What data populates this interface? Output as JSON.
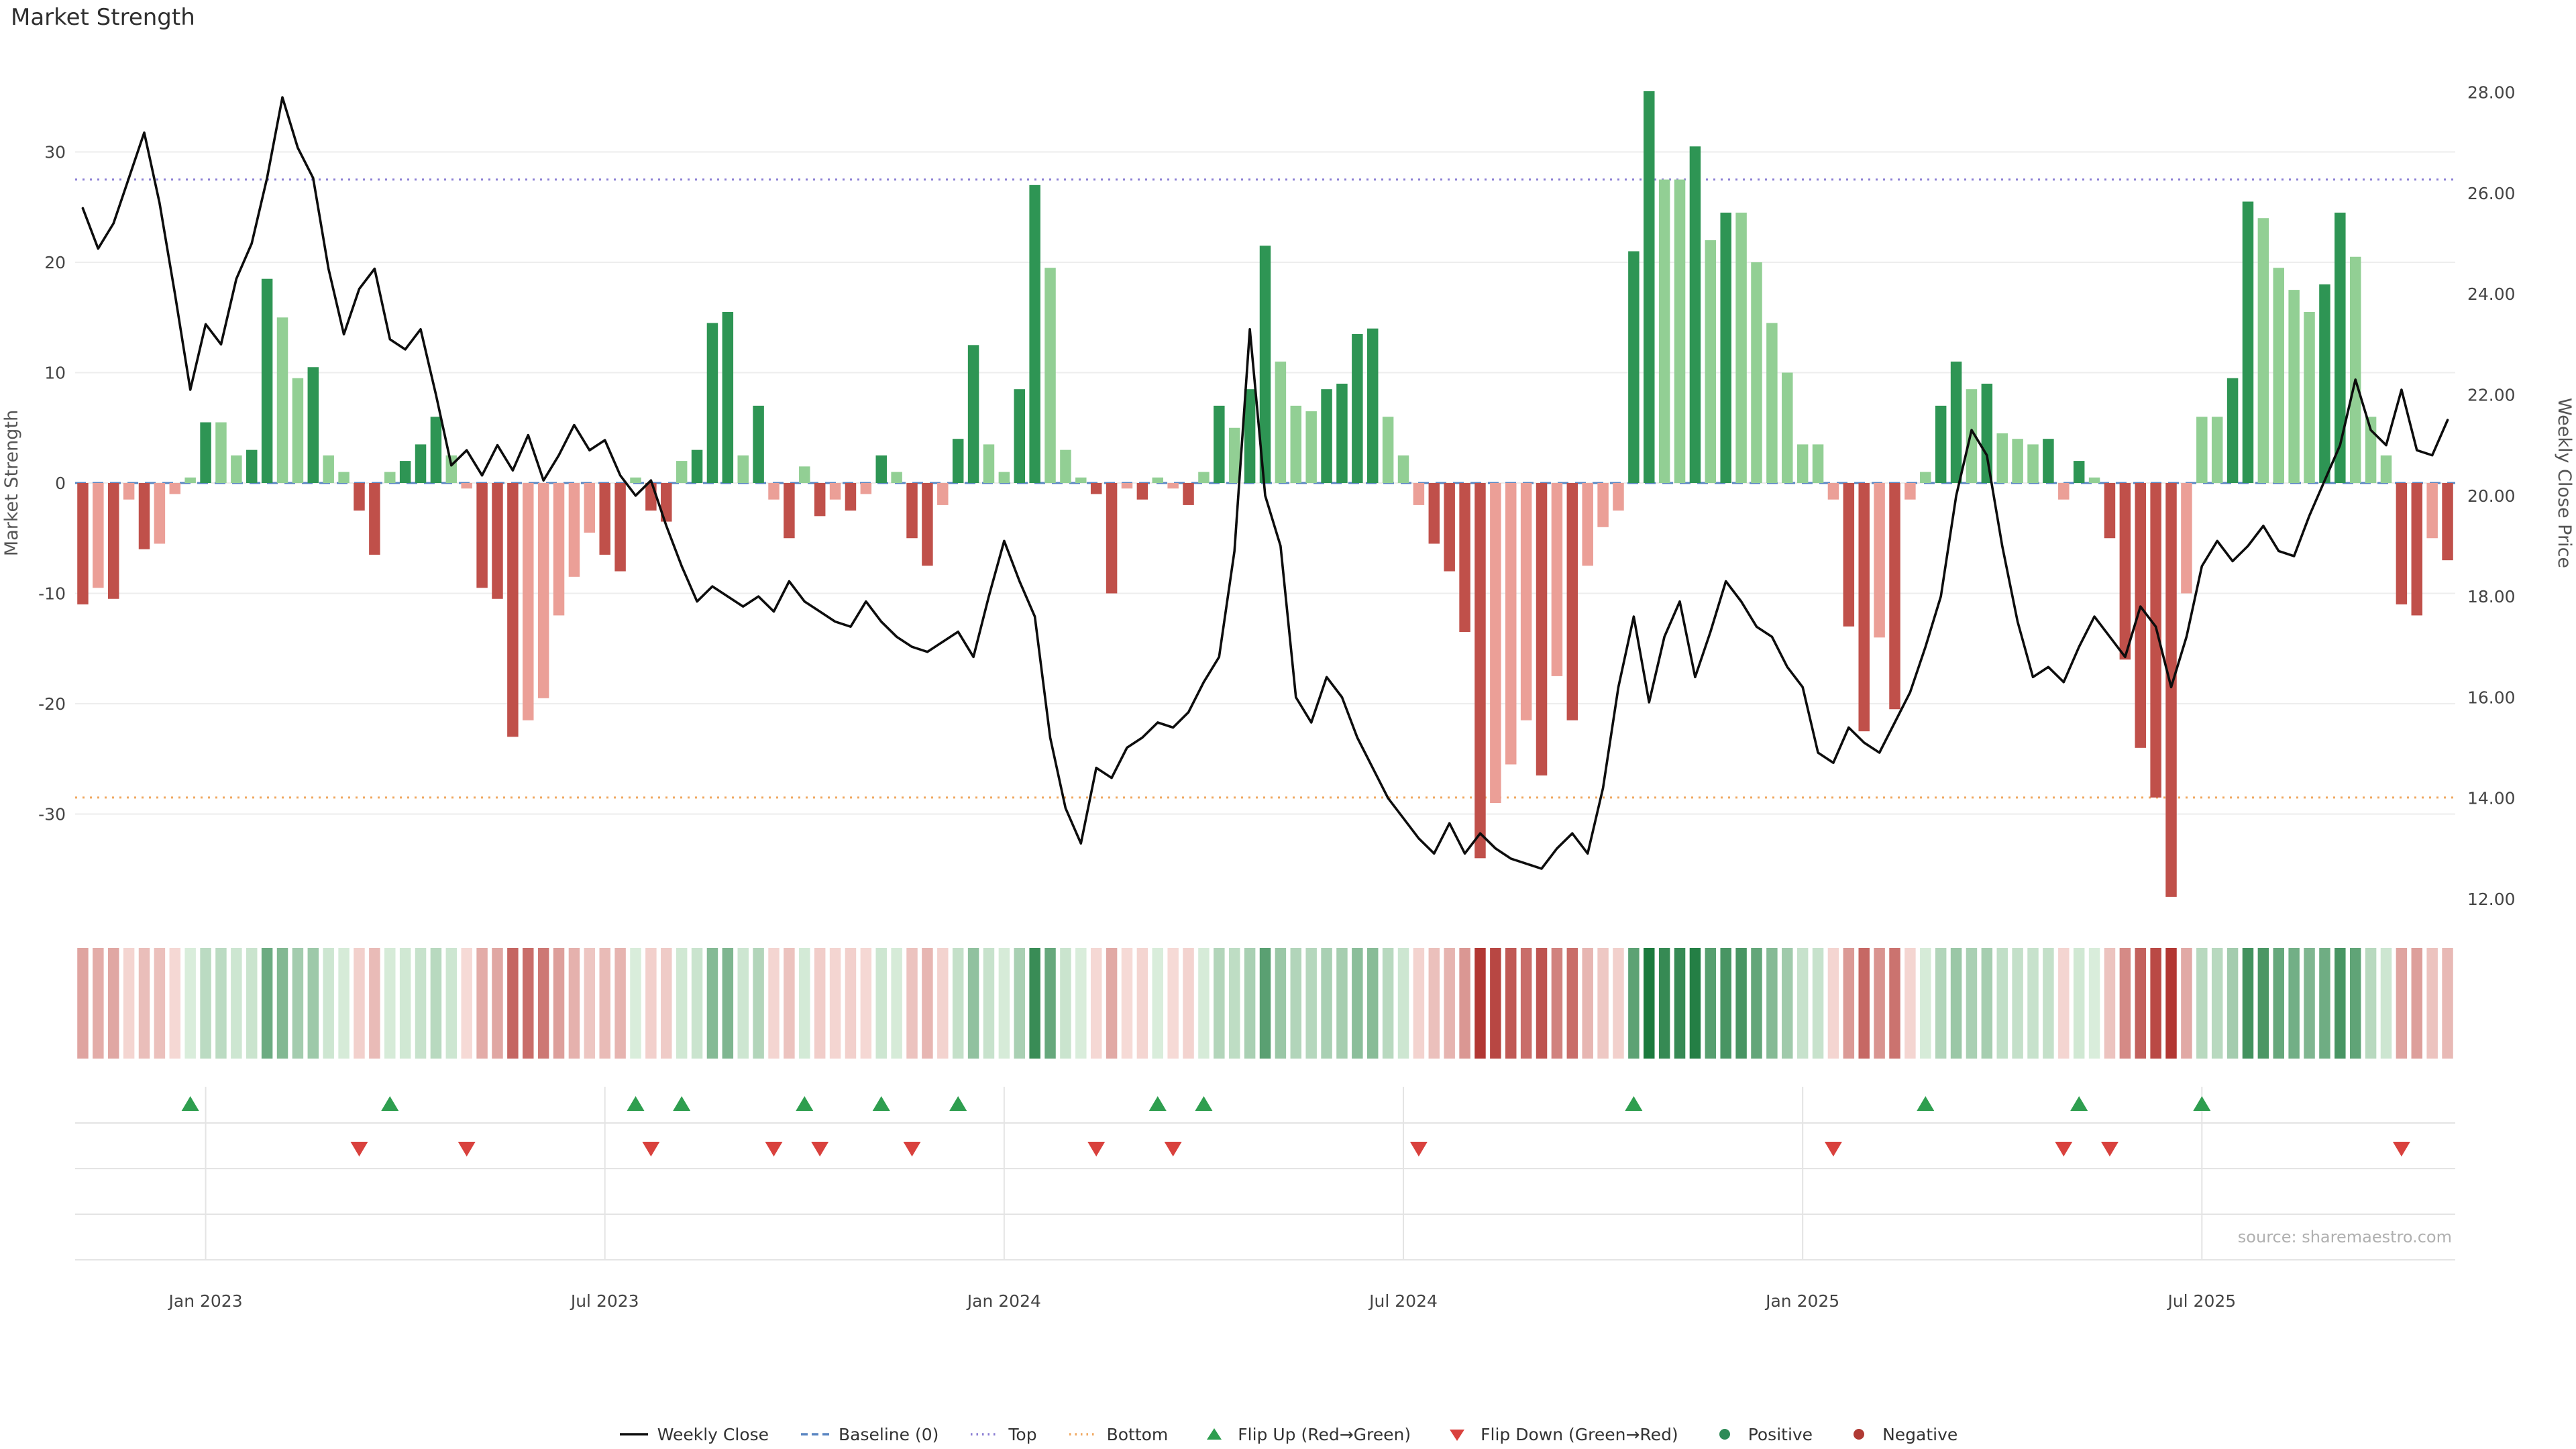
{
  "title": "Market Strength",
  "source": "source: sharemaestro.com",
  "left_axis": {
    "label": "Market Strength",
    "ticks": [
      -30,
      -20,
      -10,
      0,
      10,
      20,
      30
    ]
  },
  "right_axis": {
    "label": "Weekly Close Price",
    "ticks": [
      "12.00",
      "14.00",
      "16.00",
      "18.00",
      "20.00",
      "22.00",
      "24.00",
      "26.00",
      "28.00"
    ]
  },
  "legend": [
    {
      "label": "Weekly Close",
      "type": "line",
      "color": "#0d0d0d"
    },
    {
      "label": "Baseline (0)",
      "type": "dash",
      "color": "#5a86c2"
    },
    {
      "label": "Top",
      "type": "dot",
      "color": "#8b7fd4"
    },
    {
      "label": "Bottom",
      "type": "dot",
      "color": "#f0a860"
    },
    {
      "label": "Flip Up (Red→Green)",
      "type": "tri-up",
      "color": "#2e9e4f"
    },
    {
      "label": "Flip Down (Green→Red)",
      "type": "tri-down",
      "color": "#d9413d"
    },
    {
      "label": "Positive",
      "type": "circle",
      "color": "#2e8b57"
    },
    {
      "label": "Negative",
      "type": "circle",
      "color": "#b03a34"
    }
  ],
  "colors": {
    "positive_strong": "#2e9554",
    "positive_light": "#92cf94",
    "negative_strong": "#c0504a",
    "negative_light": "#eb9f97",
    "line": "#0d0d0d",
    "baseline": "#5a86c2",
    "top": "#8b7fd4",
    "bottom": "#f0a860",
    "grid": "#ededed",
    "panel_grid": "#e4e4e4",
    "flip_up": "#2e9e4f",
    "flip_down": "#d9413d",
    "heat_pos_low": "#dcefdd",
    "heat_pos_high": "#1b7a3d",
    "heat_neg_low": "#f7ddd9",
    "heat_neg_high": "#b23733"
  },
  "chart_data": {
    "type": "bar+line",
    "title": "Market Strength",
    "xlabel": "",
    "ylabel_left": "Market Strength",
    "ylabel_right": "Weekly Close Price",
    "frequency": "weekly",
    "left_ylim": [
      -38.6,
      38.6
    ],
    "right_ylim": [
      11.8,
      28.7
    ],
    "baseline": 0,
    "top": 27.5,
    "bottom": -28.5,
    "x_tick_labels": [
      {
        "index": 8,
        "label": "Jan 2023"
      },
      {
        "index": 34,
        "label": "Jul 2023"
      },
      {
        "index": 60,
        "label": "Jan 2024"
      },
      {
        "index": 86,
        "label": "Jul 2024"
      },
      {
        "index": 112,
        "label": "Jan 2025"
      },
      {
        "index": 138,
        "label": "Jul 2025"
      }
    ],
    "strength": [
      -11,
      -9.5,
      -10.5,
      -1.5,
      -6,
      -5.5,
      -1,
      0.5,
      5.5,
      5.5,
      2.5,
      3,
      18.5,
      15,
      9.5,
      10.5,
      2.5,
      1,
      -2.5,
      -6.5,
      1,
      2,
      3.5,
      6,
      2.5,
      -0.5,
      -9.5,
      -10.5,
      -23,
      -21.5,
      -19.5,
      -12,
      -8.5,
      -4.5,
      -6.5,
      -8,
      0.5,
      -2.5,
      -3.5,
      2,
      3,
      14.5,
      15.5,
      2.5,
      7,
      -1.5,
      -5,
      1.5,
      -3,
      -1.5,
      -2.5,
      -1,
      2.5,
      1,
      -5,
      -7.5,
      -2,
      4,
      12.5,
      3.5,
      1,
      8.5,
      27,
      19.5,
      3,
      0.5,
      -1,
      -10,
      -0.5,
      -1.5,
      0.5,
      -0.5,
      -2,
      1,
      7,
      5,
      8.5,
      21.5,
      11,
      7,
      6.5,
      8.5,
      9,
      13.5,
      14,
      6,
      2.5,
      -2,
      -5.5,
      -8,
      -13.5,
      -34,
      -29,
      -25.5,
      -21.5,
      -26.5,
      -17.5,
      -21.5,
      -7.5,
      -4,
      -2.5,
      21,
      35.5,
      27.5,
      27.5,
      30.5,
      22,
      24.5,
      24.5,
      20,
      14.5,
      10,
      3.5,
      3.5,
      -1.5,
      -13,
      -22.5,
      -14,
      -20.5,
      -1.5,
      1,
      7,
      11,
      8.5,
      9,
      4.5,
      4,
      3.5,
      4,
      -1.5,
      2,
      0.5,
      -5,
      -16,
      -24,
      -28.5,
      -37.5,
      -10,
      6,
      6,
      9.5,
      25.5,
      24,
      19.5,
      17.5,
      15.5,
      18,
      24.5,
      20.5,
      6,
      2.5,
      -11,
      -12,
      -5,
      -7
    ],
    "weekly_close": [
      25.7,
      24.9,
      25.4,
      26.3,
      27.2,
      25.8,
      24.0,
      22.1,
      23.4,
      23.0,
      24.3,
      25.0,
      26.3,
      27.9,
      26.9,
      26.3,
      24.5,
      23.2,
      24.1,
      24.5,
      23.1,
      22.9,
      23.3,
      22.0,
      20.6,
      20.9,
      20.4,
      21.0,
      20.5,
      21.2,
      20.3,
      20.8,
      21.4,
      20.9,
      21.1,
      20.4,
      20.0,
      20.3,
      19.4,
      18.6,
      17.9,
      18.2,
      18.0,
      17.8,
      18.0,
      17.7,
      18.3,
      17.9,
      17.7,
      17.5,
      17.4,
      17.9,
      17.5,
      17.2,
      17.0,
      16.9,
      17.1,
      17.3,
      16.8,
      18.0,
      19.1,
      18.3,
      17.6,
      15.2,
      13.8,
      13.1,
      14.6,
      14.4,
      15.0,
      15.2,
      15.5,
      15.4,
      15.7,
      16.3,
      16.8,
      18.9,
      23.3,
      20.0,
      19.0,
      16.0,
      15.5,
      16.4,
      16.0,
      15.2,
      14.6,
      14.0,
      13.6,
      13.2,
      12.9,
      13.5,
      12.9,
      13.3,
      13.0,
      12.8,
      12.7,
      12.6,
      13.0,
      13.3,
      12.9,
      14.2,
      16.2,
      17.6,
      15.9,
      17.2,
      17.9,
      16.4,
      17.3,
      18.3,
      17.9,
      17.4,
      17.2,
      16.6,
      16.2,
      14.9,
      14.7,
      15.4,
      15.1,
      14.9,
      15.5,
      16.1,
      17.0,
      18.0,
      20.0,
      21.3,
      20.8,
      19.0,
      17.5,
      16.4,
      16.6,
      16.3,
      17.0,
      17.6,
      17.2,
      16.8,
      17.8,
      17.4,
      16.2,
      17.2,
      18.6,
      19.1,
      18.7,
      19.0,
      19.4,
      18.9,
      18.8,
      19.6,
      20.3,
      21.0,
      22.3,
      21.3,
      21.0,
      22.1,
      20.9,
      20.8,
      21.5
    ],
    "flip_up": [
      7,
      20,
      36,
      39,
      47,
      52,
      57,
      70,
      73,
      101,
      120,
      130,
      138
    ],
    "flip_down": [
      18,
      25,
      37,
      45,
      48,
      54,
      66,
      71,
      87,
      114,
      129,
      132,
      151
    ],
    "legend_position": "bottom-center",
    "grid": true
  }
}
